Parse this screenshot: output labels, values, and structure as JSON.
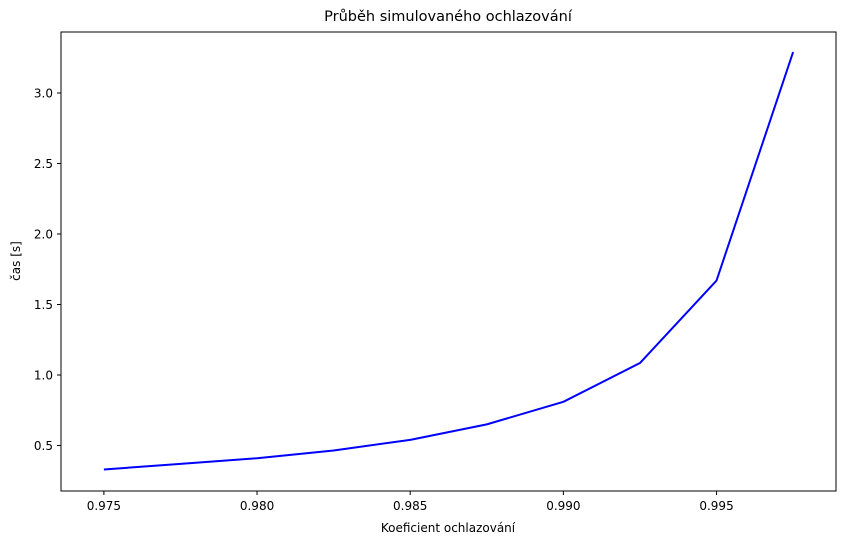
{
  "chart_data": {
    "type": "line",
    "title": "Průběh simulovaného ochlazování",
    "xlabel": "Koeficient ochlazování",
    "ylabel": "čas [s]",
    "xlim": [
      0.9736,
      0.9989
    ],
    "ylim": [
      0.1775,
      3.4325
    ],
    "x_ticks": [
      "0.975",
      "0.980",
      "0.985",
      "0.990",
      "0.995"
    ],
    "y_ticks": [
      "0.5",
      "1.0",
      "1.5",
      "2.0",
      "2.5",
      "3.0"
    ],
    "grid": false,
    "series": [
      {
        "color": "#0000ff",
        "x": [
          0.975,
          0.9775,
          0.98,
          0.9825,
          0.985,
          0.9875,
          0.99,
          0.9925,
          0.995,
          0.9975
        ],
        "y": [
          0.33,
          0.37,
          0.41,
          0.465,
          0.54,
          0.65,
          0.81,
          1.085,
          1.67,
          3.29
        ]
      }
    ]
  }
}
